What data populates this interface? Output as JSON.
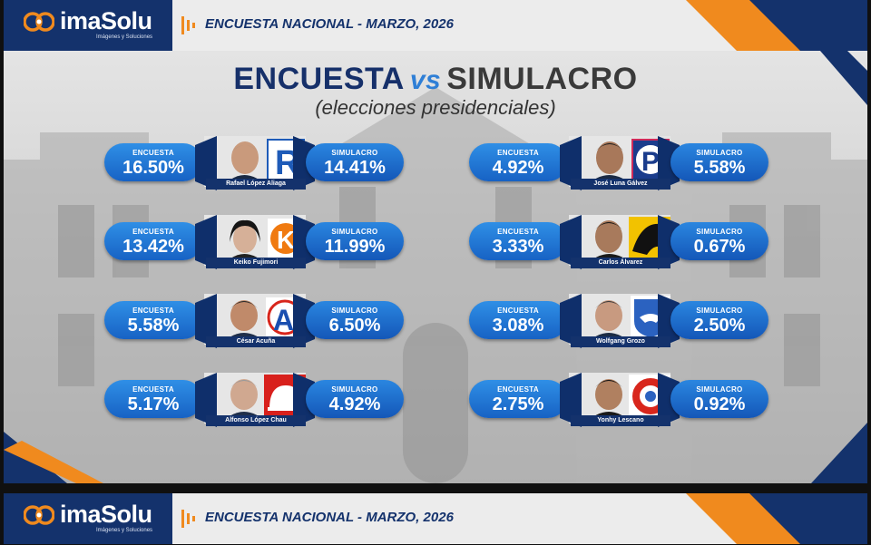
{
  "brand": {
    "name": "imaSolu",
    "tagline": "Imágenes y Soluciones",
    "header_title": "ENCUESTA NACIONAL - MARZO, 2026"
  },
  "headline": {
    "word1": "ENCUESTA",
    "vs": "vs",
    "word2": "SIMULACRO",
    "subtitle": "(elecciones presidenciales)"
  },
  "labels": {
    "encuesta": "ENCUESTA",
    "simulacro": "SIMULACRO"
  },
  "candidates": [
    {
      "name": "Rafael López Aliaga",
      "encuesta": "16.50%",
      "simulacro": "14.41%",
      "logo_icon": "letter-r-logo-icon",
      "logo_color": "#1e5bb8"
    },
    {
      "name": "José Luna Gálvez",
      "encuesta": "4.92%",
      "simulacro": "5.58%",
      "logo_icon": "letter-p-logo-icon",
      "logo_color": "#1a3c8c"
    },
    {
      "name": "Keiko Fujimori",
      "encuesta": "13.42%",
      "simulacro": "11.99%",
      "logo_icon": "letter-k-logo-icon",
      "logo_color": "#f07a10"
    },
    {
      "name": "Carlos Álvarez",
      "encuesta": "3.33%",
      "simulacro": "0.67%",
      "logo_icon": "penguin-logo-icon",
      "logo_color": "#f2c200"
    },
    {
      "name": "César Acuña",
      "encuesta": "5.58%",
      "simulacro": "6.50%",
      "logo_icon": "letter-a-logo-icon",
      "logo_color": "#1a4fb0"
    },
    {
      "name": "Wolfgang Grozo",
      "encuesta": "3.08%",
      "simulacro": "2.50%",
      "logo_icon": "handshake-shield-logo-icon",
      "logo_color": "#2b62c0"
    },
    {
      "name": "Alfonso López Chau",
      "encuesta": "5.17%",
      "simulacro": "4.92%",
      "logo_icon": "helmet-logo-icon",
      "logo_color": "#d8201c"
    },
    {
      "name": "Yonhy Lescano",
      "encuesta": "2.75%",
      "simulacro": "0.92%",
      "logo_icon": "letter-o-logo-icon",
      "logo_color": "#d8261c"
    }
  ],
  "colors": {
    "navy": "#14326c",
    "accent_blue": "#1f73d6",
    "accent_orange": "#f08a1e"
  }
}
